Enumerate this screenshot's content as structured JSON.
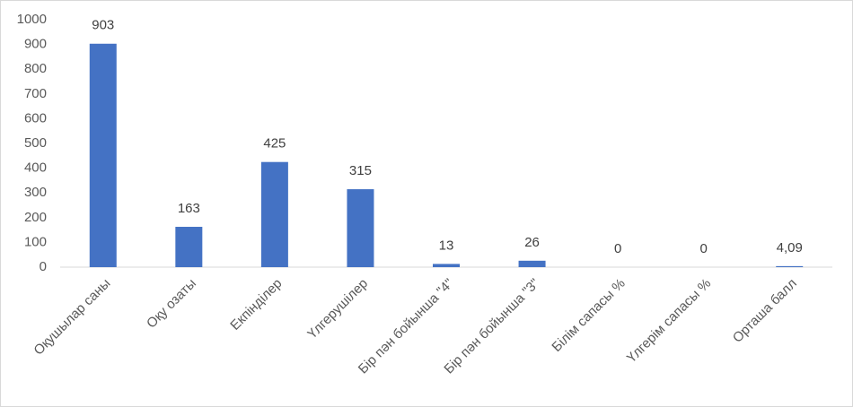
{
  "chart_data": {
    "type": "bar",
    "categories": [
      "Оқушылар саны",
      "Оқу озаты",
      "Екпінділер",
      "Үлгерушілер",
      "Бір пән бойынша \"4\"",
      "Бір пән бойынша \"3\"",
      "Білім сапасы %",
      "Үлгерім сапасы %",
      "Орташа балл"
    ],
    "values": [
      903,
      163,
      425,
      315,
      13,
      26,
      0,
      0,
      4.09
    ],
    "value_labels": [
      "903",
      "163",
      "425",
      "315",
      "13",
      "26",
      "0",
      "0",
      "4,09"
    ],
    "color": "#4472c4",
    "ylim": [
      0,
      1000
    ],
    "yticks": [
      0,
      100,
      200,
      300,
      400,
      500,
      600,
      700,
      800,
      900,
      1000
    ],
    "grid": false
  }
}
